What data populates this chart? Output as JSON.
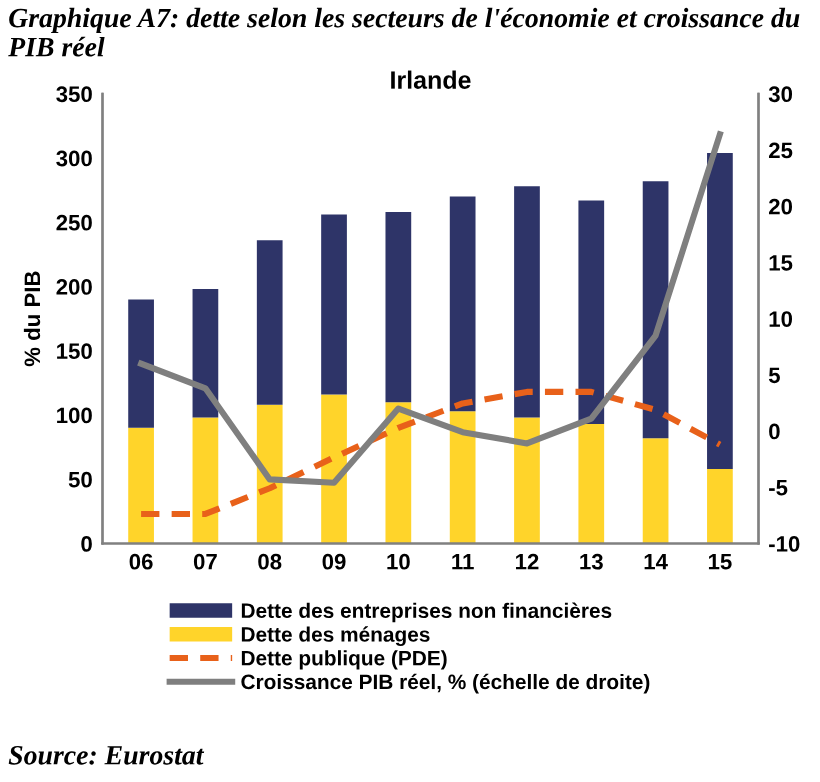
{
  "chart_data": {
    "type": "bar",
    "stacked": true,
    "title": "Graphique A7: dette selon les secteurs de l'économie et croissance du PIB réel",
    "subtitle": "Irlande",
    "ylabel": "% du PIB",
    "categories": [
      "06",
      "07",
      "08",
      "09",
      "10",
      "11",
      "12",
      "13",
      "14",
      "15"
    ],
    "series": [
      {
        "name": "Dette des ménages",
        "color": "#ffd42a",
        "values": [
          90,
          98,
          108,
          116,
          110,
          103,
          98,
          93,
          82,
          58
        ]
      },
      {
        "name": "Dette des entreprises non financières",
        "color": "#2e3468",
        "values": [
          100,
          100,
          128,
          140,
          148,
          167,
          180,
          174,
          200,
          246
        ]
      },
      {
        "name": "Dette publique (PDE)",
        "type": "line",
        "color": "#e8611a",
        "line_style": "dashed",
        "values": [
          23,
          23,
          43,
          67,
          90,
          109,
          118,
          118,
          104,
          77
        ]
      },
      {
        "name": "Croissance PIB réel, % (échelle de droite)",
        "type": "line",
        "axis": "y2",
        "color": "#7f7f7f",
        "line_style": "solid",
        "values": [
          6.0,
          3.8,
          -4.3,
          -4.6,
          2.0,
          -0.1,
          -1.1,
          1.1,
          8.5,
          26.4
        ]
      }
    ],
    "ylim": [
      0,
      350
    ],
    "yticks": [
      0,
      50,
      100,
      150,
      200,
      250,
      300,
      350
    ],
    "y2lim": [
      -10,
      30
    ],
    "y2ticks": [
      -10,
      -5,
      0,
      5,
      10,
      15,
      20,
      25,
      30
    ],
    "grid": false,
    "legend": "bottom",
    "marker": "none",
    "annotations": [
      "Source: Eurostat"
    ]
  }
}
